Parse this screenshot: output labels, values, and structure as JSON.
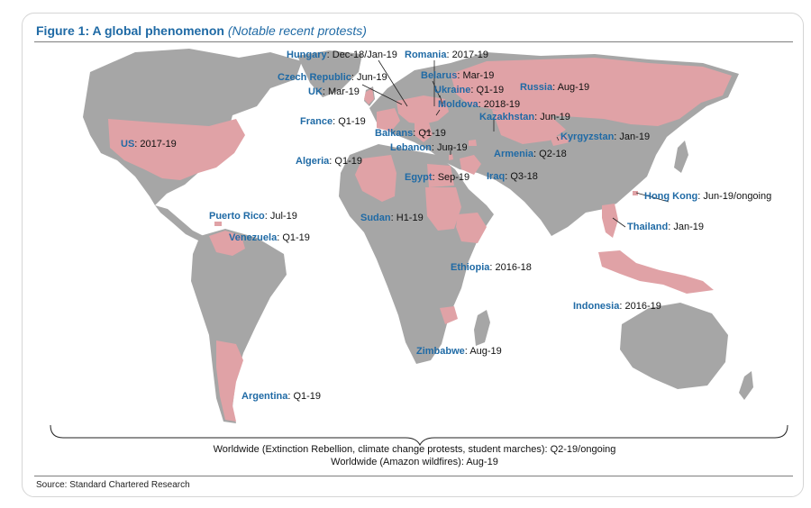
{
  "figure": {
    "title": "Figure 1: A global phenomenon",
    "subtitle": "(Notable recent protests)",
    "source": "Source: Standard Chartered Research"
  },
  "colors": {
    "land": "#a6a6a6",
    "protest": "#e0a2a6",
    "accent": "#1f6aa5"
  },
  "worldwide": [
    "Worldwide (Extinction Rebellion, climate change protests, student marches): Q2-19/ongoing",
    "Worldwide (Amazon wildfires): Aug-19"
  ],
  "protests": [
    {
      "country": "Hungary",
      "date": "Dec-18/Jan-19"
    },
    {
      "country": "Romania",
      "date": "2017-19"
    },
    {
      "country": "Czech Republic",
      "date": "Jun-19"
    },
    {
      "country": "Belarus",
      "date": "Mar-19"
    },
    {
      "country": "UK",
      "date": "Mar-19"
    },
    {
      "country": "Ukraine",
      "date": "Q1-19"
    },
    {
      "country": "Russia",
      "date": "Aug-19"
    },
    {
      "country": "Moldova",
      "date": "2018-19"
    },
    {
      "country": "France",
      "date": "Q1-19"
    },
    {
      "country": "Kazakhstan",
      "date": "Jun-19"
    },
    {
      "country": "Balkans",
      "date": "Q1-19"
    },
    {
      "country": "Kyrgyzstan",
      "date": "Jan-19"
    },
    {
      "country": "US",
      "date": "2017-19"
    },
    {
      "country": "Lebanon",
      "date": "Jun-19"
    },
    {
      "country": "Armenia",
      "date": "Q2-18"
    },
    {
      "country": "Algeria",
      "date": "Q1-19"
    },
    {
      "country": "Egypt",
      "date": "Sep-19"
    },
    {
      "country": "Iraq",
      "date": "Q3-18"
    },
    {
      "country": "Hong Kong",
      "date": "Jun-19/ongoing"
    },
    {
      "country": "Puerto Rico",
      "date": "Jul-19"
    },
    {
      "country": "Sudan",
      "date": "H1-19"
    },
    {
      "country": "Thailand",
      "date": "Jan-19"
    },
    {
      "country": "Venezuela",
      "date": "Q1-19"
    },
    {
      "country": "Ethiopia",
      "date": "2016-18"
    },
    {
      "country": "Indonesia",
      "date": "2016-19"
    },
    {
      "country": "Zimbabwe",
      "date": "Aug-19"
    },
    {
      "country": "Argentina",
      "date": "Q1-19"
    }
  ]
}
